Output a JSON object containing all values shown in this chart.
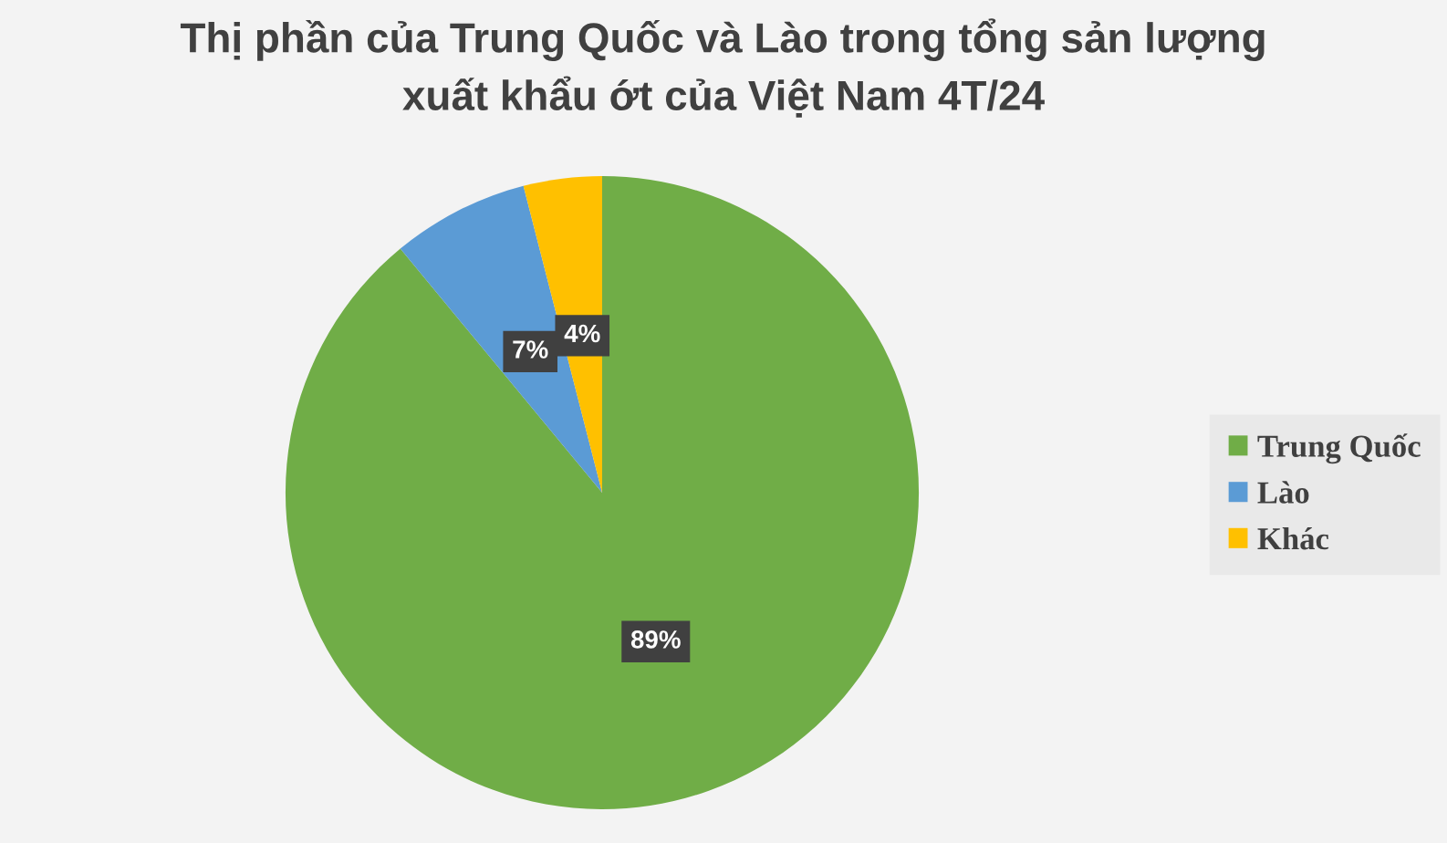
{
  "chart_data": {
    "type": "pie",
    "title": "Thị phần của Trung Quốc và Lào trong tổng sản lượng\nxuất khẩu ớt của Việt Nam 4T/24",
    "categories": [
      "Trung Quốc",
      "Lào",
      "Khác"
    ],
    "values": [
      89,
      7,
      4
    ],
    "colors": [
      "#70ad47",
      "#5b9bd5",
      "#ffc000"
    ],
    "value_labels": [
      "89%",
      "7%",
      "4%"
    ],
    "legend": "right"
  }
}
